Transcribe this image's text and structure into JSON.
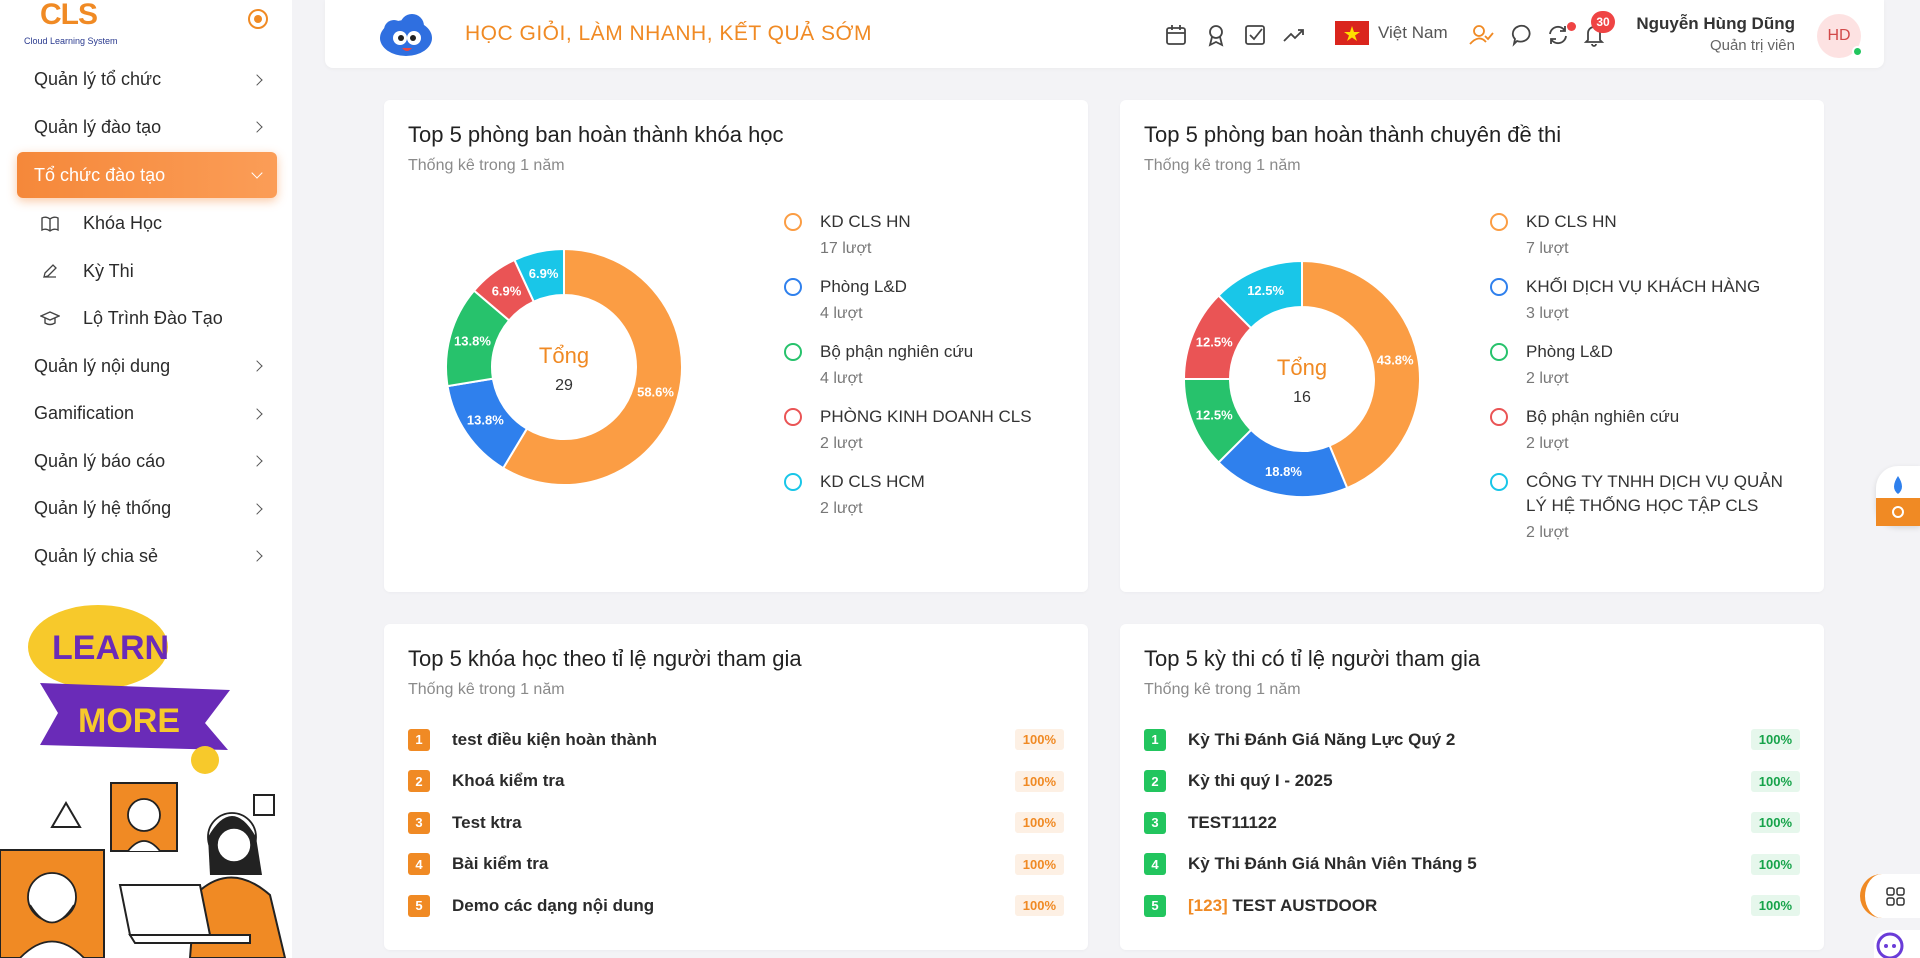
{
  "logo": {
    "text": "CLS",
    "subtitle": "Cloud Learning System"
  },
  "sidebar": {
    "items": [
      {
        "label": "Quản lý tổ chức"
      },
      {
        "label": "Quản lý đào tạo"
      },
      {
        "label": "Tổ chức đào tạo"
      },
      {
        "label": "Quản lý nội dung"
      },
      {
        "label": "Gamification"
      },
      {
        "label": "Quản lý báo cáo"
      },
      {
        "label": "Quản lý hệ thống"
      },
      {
        "label": "Quản lý chia sẻ"
      }
    ],
    "subitems": [
      {
        "label": "Khóa Học",
        "icon": "book-icon"
      },
      {
        "label": "Kỳ Thi",
        "icon": "pencil-icon"
      },
      {
        "label": "Lộ Trình Đào Tạo",
        "icon": "graduation-cap-icon"
      }
    ],
    "promo": {
      "line1": "LEARN",
      "line2": "MORE"
    }
  },
  "header": {
    "slogan": "HỌC GIỎI, LÀM NHANH, KẾT QUẢ SỚM",
    "country": "Việt Nam",
    "notifications": "30",
    "user_name": "Nguyễn Hùng Dũng",
    "user_role": "Quản trị viên",
    "avatar": "HD"
  },
  "colors": {
    "orange": "#fb9d44",
    "blue": "#2f80ed",
    "green": "#27c26c",
    "red": "#ea5455",
    "cyan": "#19c6e8"
  },
  "cards": {
    "dept_courses": {
      "title": "Top 5 phòng ban hoàn thành khóa học",
      "subtitle": "Thống kê trong 1 năm",
      "center_label": "Tổng",
      "total": "29",
      "legend": [
        {
          "name": "KD CLS HN",
          "count": "17 lượt"
        },
        {
          "name": "Phòng L&D",
          "count": "4 lượt"
        },
        {
          "name": "Bộ phận nghiên cứu",
          "count": "4 lượt"
        },
        {
          "name": "PHÒNG KINH DOANH CLS",
          "count": "2 lượt"
        },
        {
          "name": "KD CLS HCM",
          "count": "2 lượt"
        }
      ]
    },
    "dept_exams": {
      "title": "Top 5 phòng ban hoàn thành chuyên đề thi",
      "subtitle": "Thống kê trong 1 năm",
      "center_label": "Tổng",
      "total": "16",
      "legend": [
        {
          "name": "KD CLS HN",
          "count": "7 lượt"
        },
        {
          "name": "KHỐI DỊCH VỤ KHÁCH HÀNG",
          "count": "3 lượt"
        },
        {
          "name": "Phòng L&D",
          "count": "2 lượt"
        },
        {
          "name": "Bộ phận nghiên cứu",
          "count": "2 lượt"
        },
        {
          "name": "CÔNG TY TNHH DỊCH VỤ QUẢN LÝ HỆ THỐNG HỌC TẬP CLS",
          "count": "2 lượt"
        }
      ]
    },
    "courses_rank": {
      "title": "Top 5 khóa học theo tỉ lệ người tham gia",
      "subtitle": "Thống kê trong 1 năm",
      "rows": [
        {
          "rank": "1",
          "name": "test điều kiện hoàn thành",
          "pct": "100%"
        },
        {
          "rank": "2",
          "name": "Khoá kiểm tra",
          "pct": "100%"
        },
        {
          "rank": "3",
          "name": "Test ktra",
          "pct": "100%"
        },
        {
          "rank": "4",
          "name": "Bài kiểm tra",
          "pct": "100%"
        },
        {
          "rank": "5",
          "name": "Demo các dạng nội dung",
          "pct": "100%"
        }
      ]
    },
    "exams_rank": {
      "title": "Top 5 kỳ thi có tỉ lệ người tham gia",
      "subtitle": "Thống kê trong 1 năm",
      "rows": [
        {
          "rank": "1",
          "name": "Kỳ Thi Đánh Giá Năng Lực Quý 2",
          "pct": "100%"
        },
        {
          "rank": "2",
          "name": "Kỳ thi quý I - 2025",
          "pct": "100%"
        },
        {
          "rank": "3",
          "name": "TEST11122",
          "pct": "100%"
        },
        {
          "rank": "4",
          "name": "Kỳ Thi Đánh Giá Nhân Viên Tháng 5",
          "pct": "100%"
        },
        {
          "rank": "5",
          "tag": "[123]",
          "name": "TEST AUSTDOOR",
          "pct": "100%"
        }
      ]
    }
  },
  "chart_data": [
    {
      "type": "pie",
      "title": "Top 5 phòng ban hoàn thành khóa học",
      "categories": [
        "KD CLS HN",
        "Phòng L&D",
        "Bộ phận nghiên cứu",
        "PHÒNG KINH DOANH CLS",
        "KD CLS HCM"
      ],
      "values": [
        17,
        4,
        4,
        2,
        2
      ],
      "labels": [
        "58.6%",
        "13.8%",
        "13.8%",
        "6.9%",
        "6.9%"
      ],
      "colors": [
        "#fb9d44",
        "#2f80ed",
        "#27c26c",
        "#ea5455",
        "#19c6e8"
      ]
    },
    {
      "type": "pie",
      "title": "Top 5 phòng ban hoàn thành chuyên đề thi",
      "categories": [
        "KD CLS HN",
        "KHỐI DỊCH VỤ KHÁCH HÀNG",
        "Phòng L&D",
        "Bộ phận nghiên cứu",
        "CÔNG TY TNHH DỊCH VỤ QUẢN LÝ HỆ THỐNG HỌC TẬP CLS"
      ],
      "values": [
        7,
        3,
        2,
        2,
        2
      ],
      "labels": [
        "43.8%",
        "18.8%",
        "12.5%",
        "12.5%",
        "12.5%"
      ],
      "colors": [
        "#fb9d44",
        "#2f80ed",
        "#27c26c",
        "#ea5455",
        "#19c6e8"
      ]
    }
  ]
}
